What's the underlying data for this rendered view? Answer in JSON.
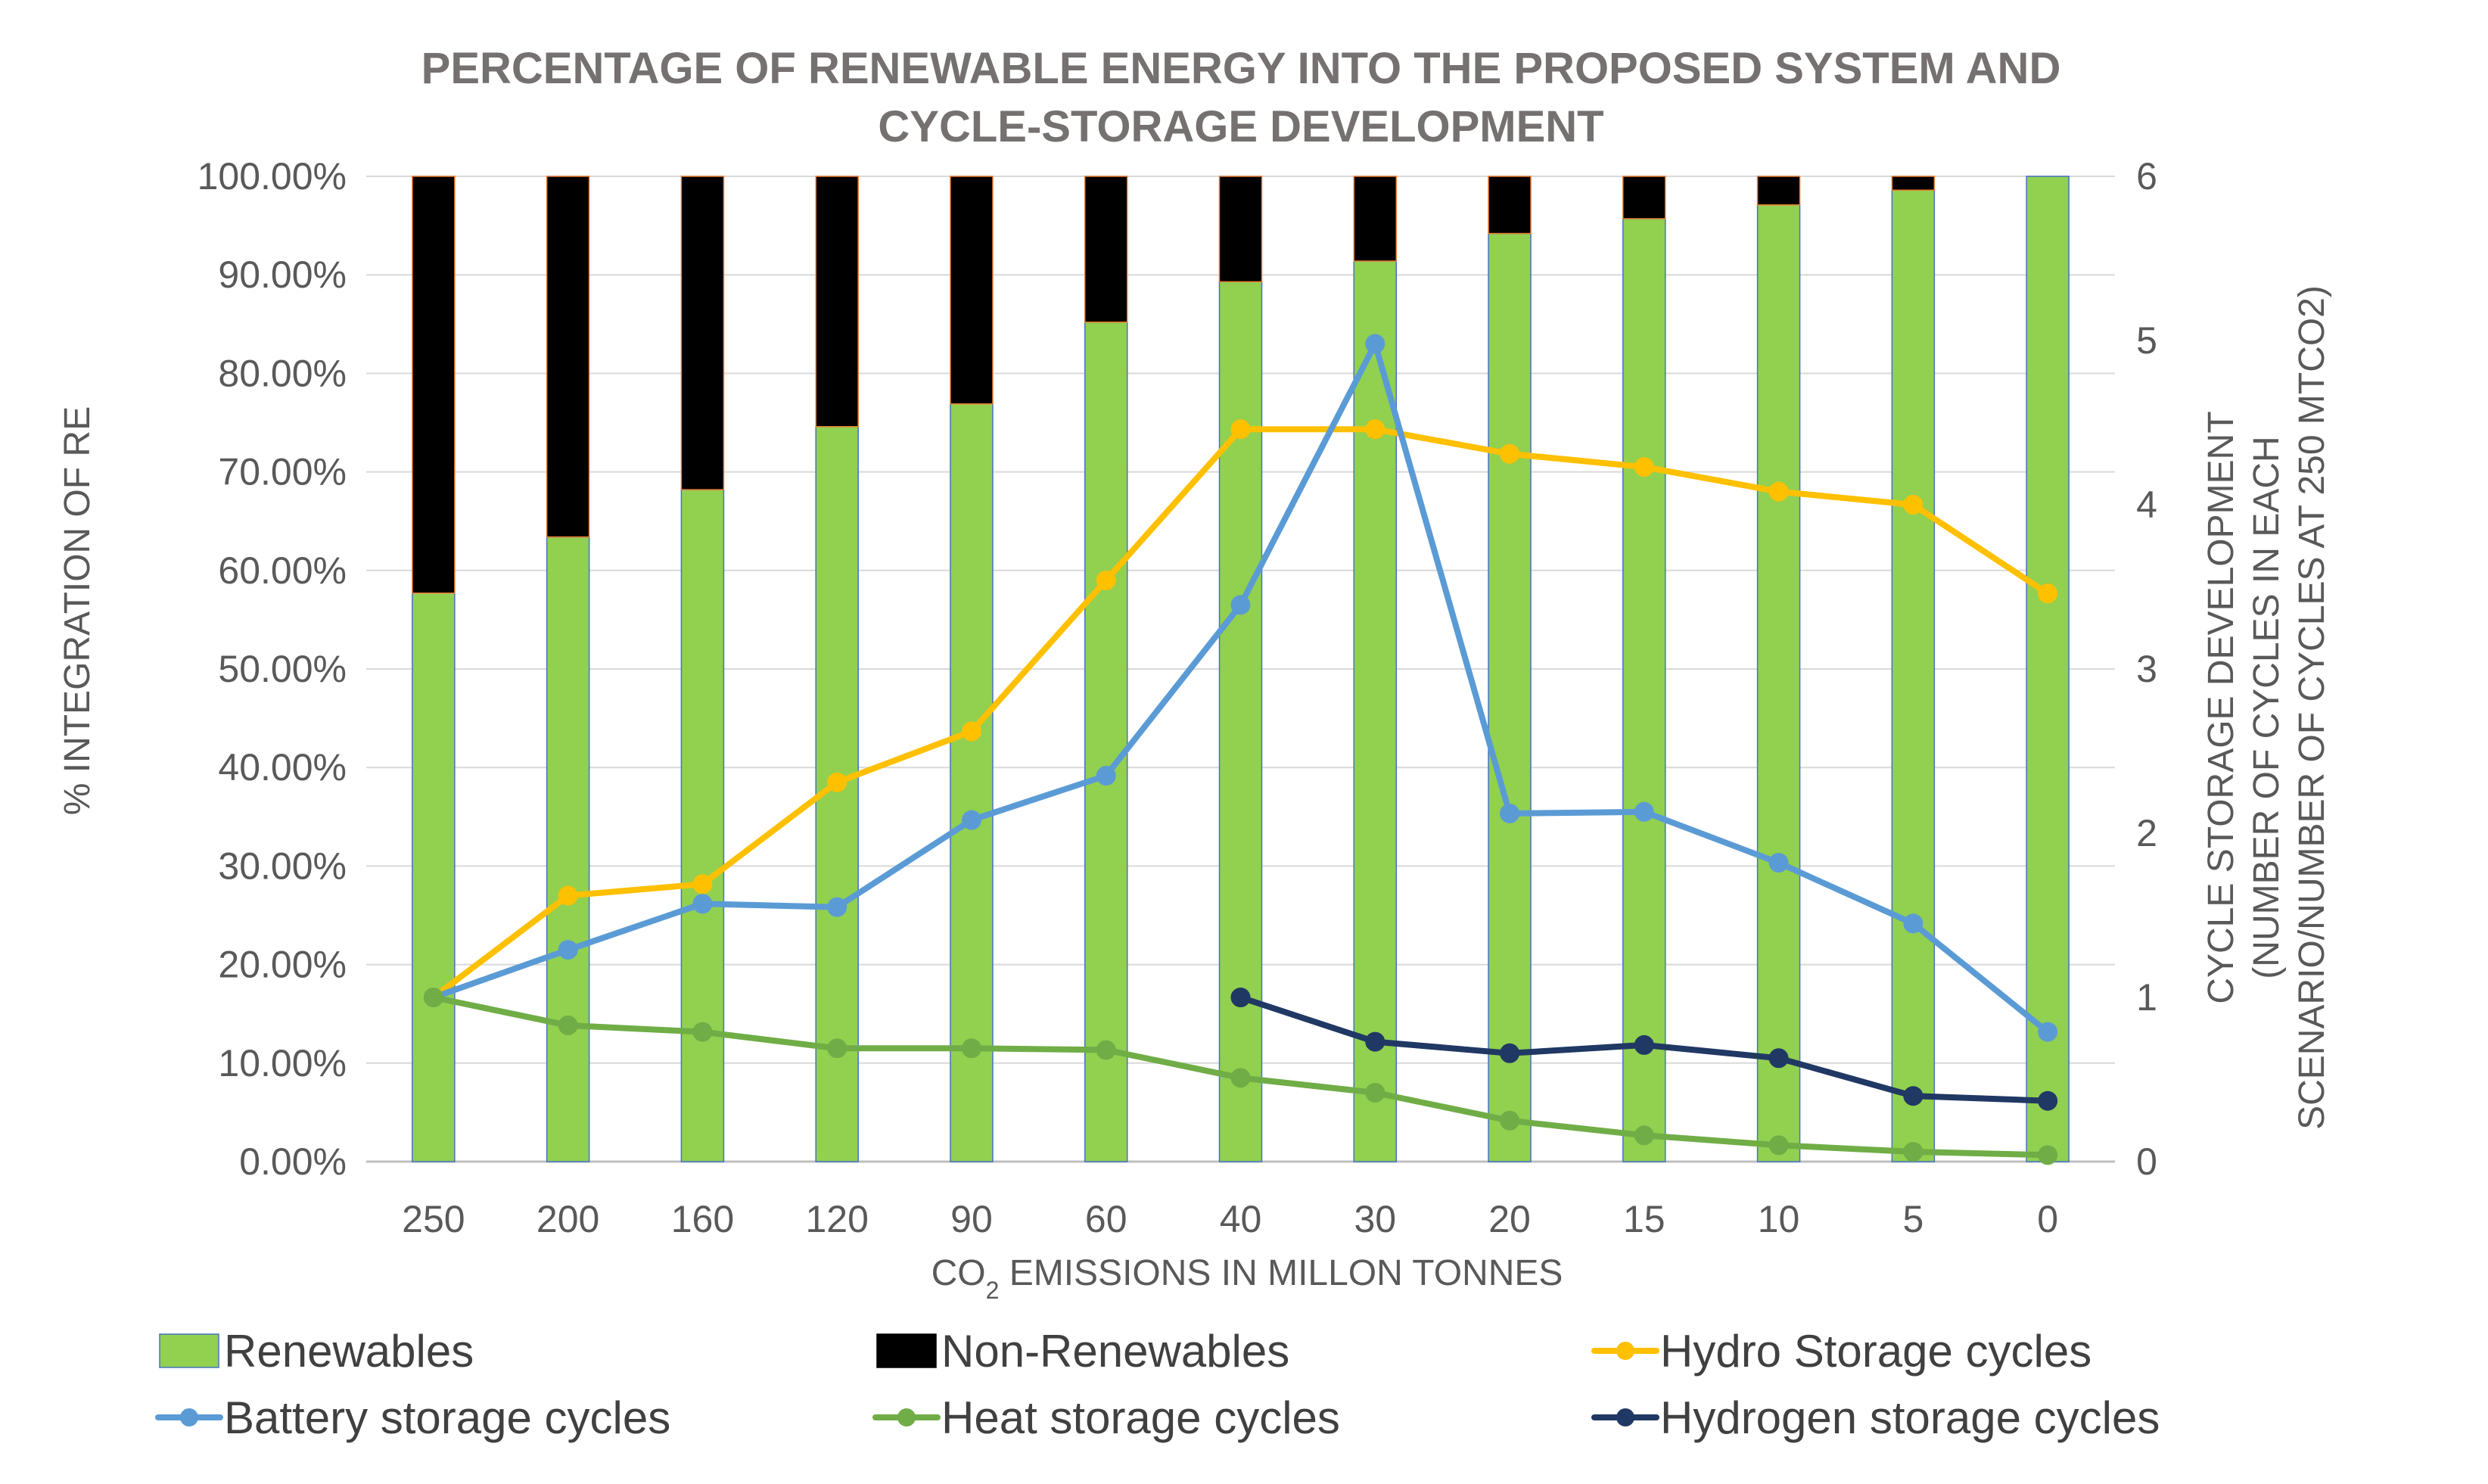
{
  "chart_data": {
    "type": "bar",
    "title_lines": [
      "PERCENTAGE OF RENEWABLE ENERGY INTO THE PROPOSED SYSTEM AND",
      "CYCLE-STORAGE DEVELOPMENT"
    ],
    "xlabel": {
      "prefix": "CO",
      "subscript": "2",
      "suffix": " EMISSIONS IN MILLON TONNES"
    },
    "ylabel_left": "% INTEGRATION OF RE",
    "ylabel_right_lines": [
      "CYCLE STORAGE DEVELOPMENT",
      "(NUMBER OF CYCLES IN EACH",
      "SCENARIO/NUMBER OF CYCLES AT 250 MTCO2)"
    ],
    "categories": [
      "250",
      "200",
      "160",
      "120",
      "90",
      "60",
      "40",
      "30",
      "20",
      "15",
      "10",
      "5",
      "0"
    ],
    "y_left": {
      "min": 0,
      "max": 100,
      "ticks": [
        "0.00%",
        "10.00%",
        "20.00%",
        "30.00%",
        "40.00%",
        "50.00%",
        "60.00%",
        "70.00%",
        "80.00%",
        "90.00%",
        "100.00%"
      ]
    },
    "y_right": {
      "min": 0,
      "max": 6,
      "ticks": [
        "0",
        "1",
        "2",
        "3",
        "4",
        "5",
        "6"
      ]
    },
    "bars": [
      {
        "name": "Renewables",
        "color": "#92D050",
        "values": [
          57.7,
          63.4,
          68.2,
          74.6,
          76.9,
          85.2,
          89.3,
          91.4,
          94.2,
          95.7,
          97.1,
          98.6,
          100
        ]
      },
      {
        "name": "Non-Renewables",
        "color": "#000000",
        "values": [
          42.3,
          36.6,
          31.8,
          25.4,
          23.1,
          14.8,
          10.7,
          8.6,
          5.8,
          4.3,
          2.9,
          1.4,
          0
        ]
      }
    ],
    "lines": [
      {
        "name": "Hydro Storage cycles",
        "color": "#FFC000",
        "values": [
          1.0,
          1.62,
          1.69,
          2.31,
          2.62,
          3.54,
          4.46,
          4.46,
          4.31,
          4.23,
          4.08,
          4.0,
          3.46
        ]
      },
      {
        "name": "Battery storage cycles",
        "color": "#5B9BD5",
        "values": [
          1.0,
          1.29,
          1.57,
          1.55,
          2.08,
          2.35,
          3.39,
          4.98,
          2.12,
          2.13,
          1.82,
          1.45,
          0.79
        ]
      },
      {
        "name": "Heat storage cycles",
        "color": "#70AD47",
        "values": [
          1.0,
          0.83,
          0.79,
          0.69,
          0.69,
          0.68,
          0.51,
          0.42,
          0.25,
          0.16,
          0.1,
          0.06,
          0.04
        ]
      },
      {
        "name": "Hydrogen storage cycles",
        "color": "#203864",
        "values": [
          null,
          null,
          null,
          null,
          null,
          null,
          1.0,
          0.73,
          0.66,
          0.71,
          0.63,
          0.4,
          0.37
        ]
      }
    ],
    "legend": [
      "Renewables",
      "Non-Renewables",
      "Hydro Storage cycles",
      "Battery storage cycles",
      "Heat storage cycles",
      "Hydrogen storage cycles"
    ],
    "legend_position": "bottom"
  }
}
